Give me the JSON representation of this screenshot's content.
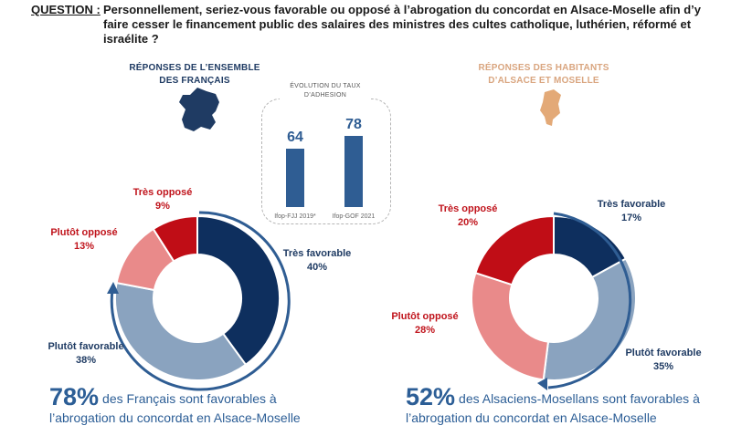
{
  "question": {
    "label": "QUESTION :",
    "text": "Personnellement, seriez-vous favorable ou opposé à l’abrogation du concordat en Alsace-Moselle afin d’y faire cesser le financement public des salaires des ministres des cultes catholique, luthérien, réformé et israélite  ?"
  },
  "france": {
    "title": "RÉPONSES DE L’ENSEMBLE DES FRANÇAIS",
    "summary_pct": "78%",
    "summary_text": "des Français sont favorables à l’abrogation du concordat en Alsace-Moselle"
  },
  "alsace": {
    "title": "RÉPONSES DES HABITANTS D’ALSACE ET MOSELLE",
    "summary_pct": "52%",
    "summary_text": "des Alsaciens-Mosellans sont favorables à l’abrogation du concordat en Alsace-Moselle"
  },
  "evolution": {
    "title": "ÉVOLUTION DU TAUX D’ADHESION"
  },
  "colors": {
    "tres_favorable": "#0e2f5e",
    "plutot_favorable": "#8aa3bf",
    "plutot_oppose": "#e98a8a",
    "tres_oppose": "#c00d16",
    "bar": "#2f5d93",
    "arrow": "#2f5d93",
    "alsace_map": "#e3a977",
    "france_map": "#1f3b63"
  },
  "chart_data": [
    {
      "type": "pie",
      "title": "RÉPONSES DE L’ENSEMBLE DES FRANÇAIS",
      "categories": [
        "Très favorable",
        "Plutôt favorable",
        "Plutôt opposé",
        "Très opposé"
      ],
      "values": [
        40,
        38,
        13,
        9
      ],
      "labels": [
        "40%",
        "38%",
        "13%",
        "9%"
      ]
    },
    {
      "type": "bar",
      "title": "ÉVOLUTION DU TAUX D’ADHESION",
      "categories": [
        "Ifop-FJJ 2019*",
        "Ifop-GOF 2021"
      ],
      "values": [
        64,
        78
      ]
    },
    {
      "type": "pie",
      "title": "RÉPONSES DES HABITANTS D’ALSACE ET MOSELLE",
      "categories": [
        "Très favorable",
        "Plutôt favorable",
        "Plutôt opposé",
        "Très opposé"
      ],
      "values": [
        17,
        35,
        28,
        20
      ],
      "labels": [
        "17%",
        "35%",
        "28%",
        "20%"
      ]
    }
  ]
}
